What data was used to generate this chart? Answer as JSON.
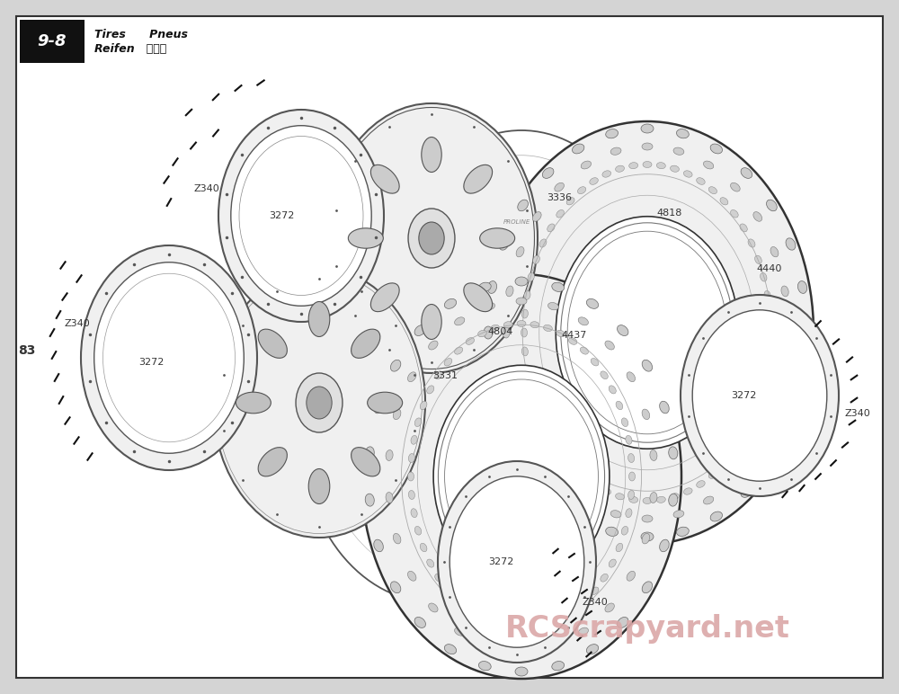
{
  "bg_color": "#d4d4d4",
  "panel_color": "#ffffff",
  "border_color": "#444444",
  "header_number": "9-8",
  "header_label1": "Tires     Pneus",
  "header_label2": "Reifen  タイヤ",
  "watermark": "RCScrapyard.net",
  "watermark_color": "#dba8a8",
  "page_number": "83",
  "line_color": "#555555",
  "fill_white": "#ffffff",
  "fill_light": "#f0f0f0",
  "fill_mid": "#e0e0e0",
  "screw_color": "#222222"
}
